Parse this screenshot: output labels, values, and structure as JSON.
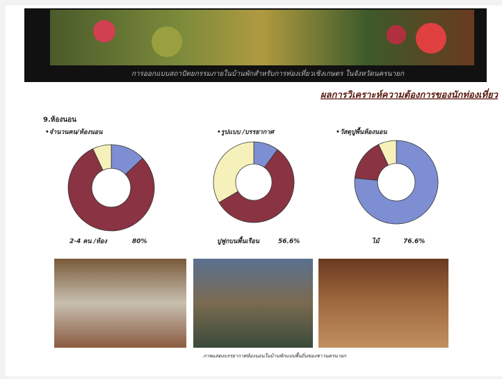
{
  "header": {
    "banner_text": "การออกแบบสถาปัตยกรรมภายในบ้านพักสำหรับการท่องเที่ยวเชิงเกษตร ในจังหวัดนครนายก"
  },
  "heading": "ผลการวิเคราะห์ความต้องการของนักท่องเที่ยว",
  "section": "9.ห้องนอน",
  "charts": [
    {
      "title": "•จำนวนคน/ห้องนอน",
      "values": [
        13,
        80,
        7
      ],
      "colors": [
        "#7d8fd2",
        "#8a3343",
        "#f6f1bb"
      ],
      "summary_label": "2-4 คน /ห้อง",
      "summary_value": "80%"
    },
    {
      "title": "•รูปแบบ /บรรยากาศ",
      "values": [
        10,
        56.6,
        33.4
      ],
      "colors": [
        "#7d8fd2",
        "#8a3343",
        "#f6f1bb"
      ],
      "summary_label": "ปูฟูกบนพื้นเรือน",
      "summary_value": "56.6%"
    },
    {
      "title": "•วัสดุปูพื้นห้องนอน",
      "values": [
        76.6,
        16.4,
        7
      ],
      "colors": [
        "#7d8fd2",
        "#8a3343",
        "#f6f1bb"
      ],
      "summary_label": "ไม้",
      "summary_value": "76.6%"
    }
  ],
  "photo_caption": "ภาพแสดงบรรยากาศห้องนอนในบ้านพักแบบพื้นถิ่นของชาวนครนายก"
}
